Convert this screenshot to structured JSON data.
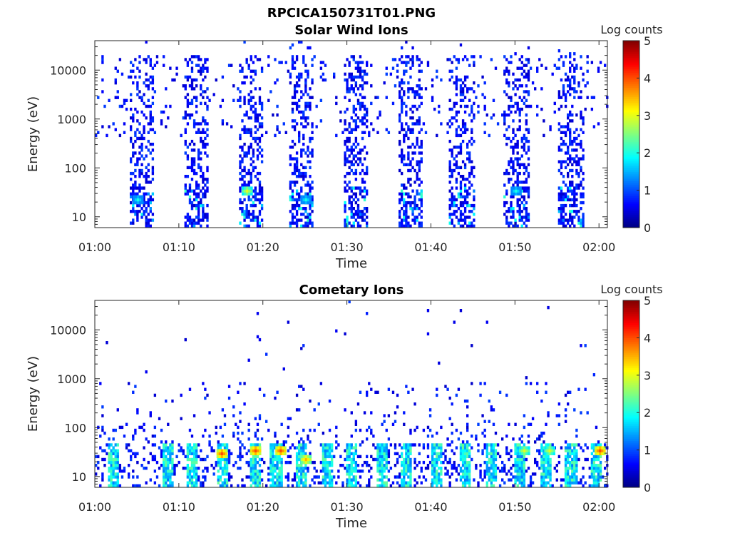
{
  "figure_title": "RPCICA150731T01.PNG",
  "chart_data": [
    {
      "type": "heatmap",
      "title": "Solar Wind Ions",
      "xlabel": "Time",
      "ylabel": "Energy (eV)",
      "y_scale": "log",
      "ylim": [
        6,
        40000
      ],
      "xlim": [
        "01:00",
        "02:01"
      ],
      "x_ticks": [
        "01:00",
        "01:10",
        "01:20",
        "01:30",
        "01:40",
        "01:50",
        "02:00"
      ],
      "y_ticks": [
        "10",
        "100",
        "1000",
        "10000"
      ],
      "colorbar": {
        "label": "Log counts",
        "range": [
          0,
          5
        ],
        "ticks": [
          "0",
          "1",
          "2",
          "3",
          "4",
          "5"
        ],
        "colormap": "jet"
      },
      "pattern": "bursts",
      "bursts_start_min": [
        4,
        10.5,
        17,
        23,
        29.5,
        36,
        42,
        48.5,
        55
      ],
      "burst_duration_min": 3,
      "hotspots": [
        {
          "time": "01:05",
          "energy": 22,
          "level": 2
        },
        {
          "time": "01:18",
          "energy": 35,
          "level": 3
        },
        {
          "time": "01:25",
          "energy": 22,
          "level": 2
        },
        {
          "time": "01:50",
          "energy": 35,
          "level": 2
        }
      ]
    },
    {
      "type": "heatmap",
      "title": "Cometary Ions",
      "xlabel": "Time",
      "ylabel": "Energy (eV)",
      "y_scale": "log",
      "ylim": [
        6,
        40000
      ],
      "xlim": [
        "01:00",
        "02:01"
      ],
      "x_ticks": [
        "01:00",
        "01:10",
        "01:20",
        "01:30",
        "01:40",
        "01:50",
        "02:00"
      ],
      "y_ticks": [
        "10",
        "100",
        "1000",
        "10000"
      ],
      "colorbar": {
        "label": "Log counts",
        "range": [
          0,
          5
        ],
        "ticks": [
          "0",
          "1",
          "2",
          "3",
          "4",
          "5"
        ],
        "colormap": "jet"
      },
      "pattern": "low-energy bands",
      "band_centers_min": [
        2,
        8.5,
        11.5,
        15,
        19,
        21.5,
        24.5,
        27.5,
        30.5,
        34,
        37,
        40.5,
        44,
        47,
        50.5,
        53.5,
        56.5,
        59.5
      ],
      "hotspots": [
        {
          "time": "01:15",
          "energy": 30,
          "level": 4
        },
        {
          "time": "01:19",
          "energy": 35,
          "level": 4
        },
        {
          "time": "01:22",
          "energy": 35,
          "level": 4
        },
        {
          "time": "01:25",
          "energy": 22,
          "level": 3.5
        },
        {
          "time": "01:51",
          "energy": 35,
          "level": 3
        },
        {
          "time": "01:54",
          "energy": 35,
          "level": 3
        },
        {
          "time": "02:00",
          "energy": 35,
          "level": 4
        }
      ]
    }
  ]
}
